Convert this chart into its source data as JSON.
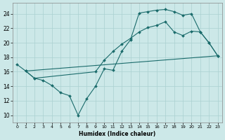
{
  "xlabel": "Humidex (Indice chaleur)",
  "bg_color": "#cce8e8",
  "grid_color": "#aad0d0",
  "line_color": "#1a6b6b",
  "xlim": [
    -0.5,
    23.5
  ],
  "ylim": [
    9.0,
    25.5
  ],
  "xticks": [
    0,
    1,
    2,
    3,
    4,
    5,
    6,
    7,
    8,
    9,
    10,
    11,
    12,
    13,
    14,
    15,
    16,
    17,
    18,
    19,
    20,
    21,
    22,
    23
  ],
  "yticks": [
    10,
    12,
    14,
    16,
    18,
    20,
    22,
    24
  ],
  "line1_x": [
    0,
    1,
    2,
    3,
    4,
    5,
    6,
    7,
    8,
    9,
    10,
    11,
    12,
    13,
    14,
    15,
    16,
    17,
    18,
    19,
    20,
    21,
    22,
    23
  ],
  "line1_y": [
    17.0,
    16.1,
    15.1,
    14.8,
    14.1,
    13.1,
    12.7,
    10.0,
    12.3,
    14.0,
    16.4,
    16.2,
    18.8,
    20.4,
    24.1,
    24.3,
    24.5,
    24.6,
    24.3,
    23.8,
    24.0,
    21.5,
    20.0,
    18.2
  ],
  "line2_x": [
    1,
    2,
    9,
    10,
    11,
    12,
    13,
    14,
    15,
    16,
    17,
    18,
    19,
    20,
    21,
    22,
    23
  ],
  "line2_y": [
    16.1,
    15.1,
    16.0,
    17.6,
    18.8,
    19.8,
    20.6,
    21.5,
    22.1,
    22.4,
    22.9,
    21.5,
    21.0,
    21.6,
    21.5,
    20.0,
    18.2
  ],
  "line3_x": [
    1,
    23
  ],
  "line3_y": [
    16.1,
    18.2
  ]
}
